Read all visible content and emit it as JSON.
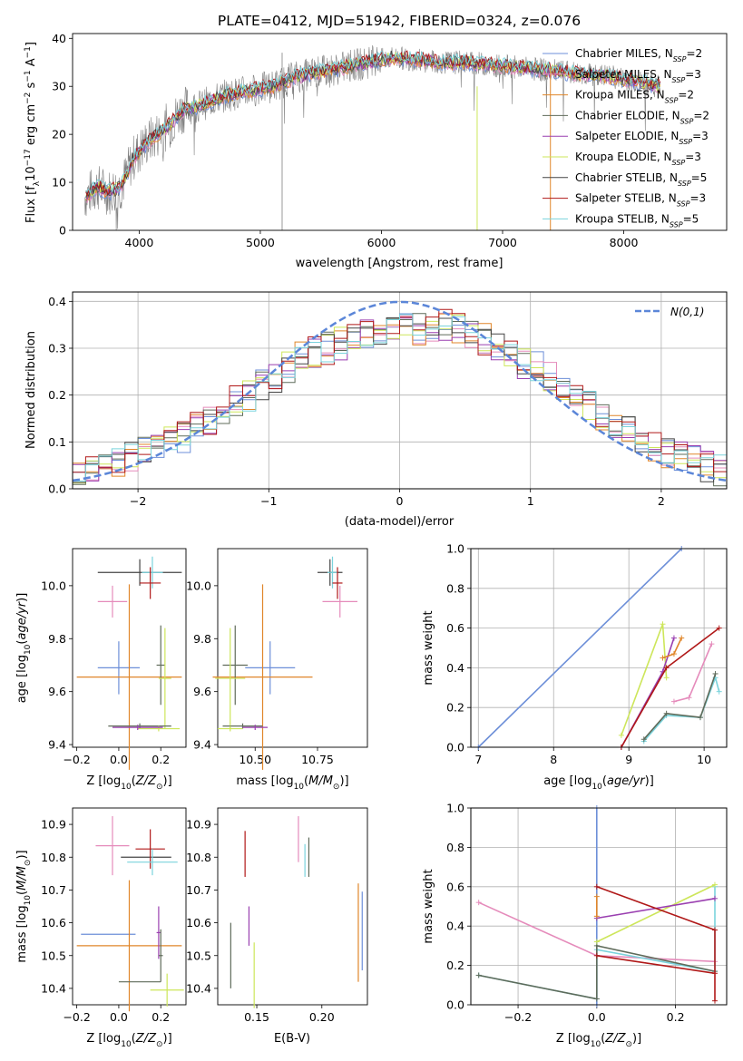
{
  "figure": {
    "title": "PLATE=0412, MJD=51942, FIBERID=0324, z=0.076"
  },
  "colors": {
    "series": [
      "#6d8fd8",
      "#e58bbb",
      "#e0862a",
      "#5f6b5a",
      "#9a3fb0",
      "#cde65a",
      "#444444",
      "#b01818",
      "#7ad3dc"
    ],
    "data": "#808080",
    "normal": "#5b86d8"
  },
  "chart_data": [
    {
      "type": "line",
      "title": "PLATE=0412, MJD=51942, FIBERID=0324, z=0.076",
      "xlabel": "wavelength [Angstrom, rest frame]",
      "ylabel": "Flux [f_λ 10^-17 erg cm^-2 s^-1 A^-1]",
      "xlim": [
        3450,
        8850
      ],
      "ylim": [
        0,
        41
      ],
      "xticks": [
        "4000",
        "5000",
        "6000",
        "7000",
        "8000"
      ],
      "yticks": [
        "0",
        "10",
        "20",
        "30",
        "40"
      ],
      "legend_position": "right",
      "series": [
        {
          "name": "Chabrier MILES, N_SSP=2",
          "color": "#6d8fd8"
        },
        {
          "name": "Salpeter MILES, N_SSP=3",
          "color": "#e58bbb"
        },
        {
          "name": "Kroupa MILES, N_SSP=2",
          "color": "#e0862a"
        },
        {
          "name": "Chabrier ELODIE, N_SSP=2",
          "color": "#5f6b5a"
        },
        {
          "name": "Salpeter ELODIE, N_SSP=3",
          "color": "#9a3fb0"
        },
        {
          "name": "Kroupa ELODIE, N_SSP=3",
          "color": "#cde65a"
        },
        {
          "name": "Chabrier STELIB, N_SSP=5",
          "color": "#444444"
        },
        {
          "name": "Salpeter STELIB, N_SSP=3",
          "color": "#b01818"
        },
        {
          "name": "Kroupa STELIB, N_SSP=5",
          "color": "#7ad3dc"
        }
      ],
      "continuum": {
        "x": [
          3550,
          3650,
          3750,
          3850,
          3950,
          4050,
          4150,
          4250,
          4350,
          4500,
          4700,
          4900,
          5100,
          5300,
          5500,
          5700,
          5900,
          6100,
          6300,
          6500,
          6700,
          6900,
          7100,
          7300,
          7500,
          7700,
          7900,
          8100,
          8300
        ],
        "y": [
          7,
          9,
          8,
          9,
          15,
          18,
          20,
          22,
          25,
          26,
          28,
          29,
          30,
          32,
          33,
          34,
          35,
          36,
          35.5,
          35,
          35,
          34.5,
          34,
          33.5,
          33,
          32.5,
          32,
          31,
          30
        ]
      }
    },
    {
      "type": "bar",
      "xlabel": "(data-model)/error",
      "ylabel": "Normed distribution",
      "xlim": [
        -2.5,
        2.5
      ],
      "ylim": [
        0,
        0.42
      ],
      "xticks": [
        "−2",
        "−1",
        "0",
        "1",
        "2"
      ],
      "yticks": [
        "0.0",
        "0.1",
        "0.2",
        "0.3",
        "0.4"
      ],
      "legend": "N(0,1)",
      "legend_position": "top-right",
      "bin_width": 0.1,
      "bin_start": -2.5,
      "histogram": [
        0.04,
        0.05,
        0.05,
        0.06,
        0.07,
        0.08,
        0.08,
        0.1,
        0.11,
        0.13,
        0.15,
        0.17,
        0.19,
        0.2,
        0.22,
        0.24,
        0.26,
        0.28,
        0.29,
        0.3,
        0.31,
        0.32,
        0.33,
        0.33,
        0.34,
        0.35,
        0.34,
        0.35,
        0.35,
        0.34,
        0.33,
        0.32,
        0.31,
        0.29,
        0.27,
        0.26,
        0.24,
        0.22,
        0.2,
        0.18,
        0.16,
        0.14,
        0.12,
        0.11,
        0.09,
        0.08,
        0.07,
        0.06,
        0.05,
        0.04
      ]
    },
    {
      "type": "scatter",
      "xlabel": "Z [log10(Z/Z⊙)]",
      "ylabel": "age [log10(age/yr)]",
      "xlim": [
        -0.22,
        0.32
      ],
      "ylim": [
        9.39,
        10.14
      ],
      "xticks": [
        "−0.2",
        "0.0",
        "0.2"
      ],
      "yticks": [
        "9.4",
        "9.6",
        "9.8",
        "10.0"
      ],
      "points": [
        {
          "x": 0.1,
          "xerr": 0.2,
          "y": 10.05,
          "yerr": 0.05,
          "series": 6
        },
        {
          "x": 0.16,
          "xerr": 0.05,
          "y": 10.05,
          "yerr": 0.06,
          "series": 8
        },
        {
          "x": 0.15,
          "xerr": 0.05,
          "y": 10.01,
          "yerr": 0.06,
          "series": 7
        },
        {
          "x": -0.03,
          "xerr": 0.07,
          "y": 9.94,
          "yerr": 0.06,
          "series": 1
        },
        {
          "x": 0.0,
          "xerr": 0.1,
          "y": 9.69,
          "yerr": 0.1,
          "series": 0
        },
        {
          "x": 0.05,
          "xerr": 0.25,
          "y": 9.655,
          "yerr": 0.35,
          "series": 2
        },
        {
          "x": 0.2,
          "xerr": 0.02,
          "y": 9.7,
          "yerr": 0.15,
          "series": 3
        },
        {
          "x": 0.22,
          "xerr": 0.03,
          "y": 9.65,
          "yerr": 0.19,
          "series": 5
        },
        {
          "x": 0.1,
          "xerr": 0.15,
          "y": 9.47,
          "yerr": 0.01,
          "series": 3
        },
        {
          "x": 0.19,
          "xerr": 0.1,
          "y": 9.46,
          "yerr": 0.01,
          "series": 5
        },
        {
          "x": 0.09,
          "xerr": 0.12,
          "y": 9.465,
          "yerr": 0.01,
          "series": 4
        }
      ]
    },
    {
      "type": "scatter",
      "xlabel": "mass [log10(M/M⊙)]",
      "ylabel": "",
      "xlim": [
        10.35,
        10.95
      ],
      "ylim": [
        9.39,
        10.14
      ],
      "xticks": [
        "10.50",
        "10.75"
      ],
      "yticks": [
        "9.4",
        "9.6",
        "9.8",
        "10.0"
      ],
      "points": [
        {
          "x": 10.8,
          "xerr": 0.05,
          "y": 10.05,
          "yerr": 0.05,
          "series": 6
        },
        {
          "x": 10.81,
          "xerr": 0.02,
          "y": 10.05,
          "yerr": 0.06,
          "series": 8
        },
        {
          "x": 10.83,
          "xerr": 0.02,
          "y": 10.01,
          "yerr": 0.06,
          "series": 7
        },
        {
          "x": 10.84,
          "xerr": 0.07,
          "y": 9.94,
          "yerr": 0.06,
          "series": 1
        },
        {
          "x": 10.56,
          "xerr": 0.1,
          "y": 9.69,
          "yerr": 0.1,
          "series": 0
        },
        {
          "x": 10.53,
          "xerr": 0.2,
          "y": 9.655,
          "yerr": 0.35,
          "series": 2
        },
        {
          "x": 10.42,
          "xerr": 0.05,
          "y": 9.7,
          "yerr": 0.15,
          "series": 3
        },
        {
          "x": 10.4,
          "xerr": 0.06,
          "y": 9.65,
          "yerr": 0.19,
          "series": 5
        },
        {
          "x": 10.45,
          "xerr": 0.08,
          "y": 9.47,
          "yerr": 0.01,
          "series": 3
        },
        {
          "x": 10.4,
          "xerr": 0.05,
          "y": 9.46,
          "yerr": 0.01,
          "series": 5
        },
        {
          "x": 10.5,
          "xerr": 0.05,
          "y": 9.465,
          "yerr": 0.01,
          "series": 4
        }
      ]
    },
    {
      "type": "line",
      "xlabel": "age [log10(age/yr)]",
      "ylabel": "mass weight",
      "xlim": [
        6.9,
        10.3
      ],
      "ylim": [
        0,
        1
      ],
      "xticks": [
        "7",
        "8",
        "9",
        "10"
      ],
      "yticks": [
        "0.0",
        "0.2",
        "0.4",
        "0.6",
        "0.8",
        "1.0"
      ],
      "series": [
        {
          "color": 0,
          "x": [
            7.0,
            9.7
          ],
          "y": [
            0.0,
            1.0
          ]
        },
        {
          "color": 5,
          "x": [
            8.9,
            9.45,
            9.5
          ],
          "y": [
            0.06,
            0.62,
            0.35
          ]
        },
        {
          "color": 4,
          "x": [
            8.9,
            9.45,
            9.6
          ],
          "y": [
            0.0,
            0.38,
            0.55
          ]
        },
        {
          "color": 2,
          "x": [
            9.45,
            9.6,
            9.7
          ],
          "y": [
            0.45,
            0.47,
            0.55
          ]
        },
        {
          "color": 7,
          "x": [
            8.9,
            9.5,
            10.2
          ],
          "y": [
            0.0,
            0.4,
            0.6
          ]
        },
        {
          "color": 1,
          "x": [
            9.6,
            9.8,
            10.1
          ],
          "y": [
            0.23,
            0.25,
            0.52
          ]
        },
        {
          "color": 8,
          "x": [
            9.2,
            9.5,
            9.95,
            10.15,
            10.2
          ],
          "y": [
            0.03,
            0.16,
            0.15,
            0.35,
            0.28
          ]
        },
        {
          "color": 3,
          "x": [
            9.2,
            9.5,
            9.95,
            10.15
          ],
          "y": [
            0.04,
            0.17,
            0.15,
            0.37
          ]
        }
      ]
    },
    {
      "type": "scatter",
      "xlabel": "Z [log10(Z/Z⊙)]",
      "ylabel": "mass [log10(M/M⊙)]",
      "xlim": [
        -0.22,
        0.32
      ],
      "ylim": [
        10.35,
        10.95
      ],
      "xticks": [
        "−0.2",
        "0.0",
        "0.2"
      ],
      "yticks": [
        "10.4",
        "10.5",
        "10.6",
        "10.7",
        "10.8",
        "10.9"
      ],
      "points": [
        {
          "x": -0.03,
          "xerr": 0.08,
          "y": 10.835,
          "yerr": 0.09,
          "series": 1
        },
        {
          "x": 0.13,
          "xerr": 0.12,
          "y": 10.8,
          "yerr": 0.0,
          "series": 6
        },
        {
          "x": 0.15,
          "xerr": 0.07,
          "y": 10.825,
          "yerr": 0.06,
          "series": 7
        },
        {
          "x": 0.16,
          "xerr": 0.12,
          "y": 10.785,
          "yerr": 0.04,
          "series": 8
        },
        {
          "x": -0.05,
          "xerr": 0.13,
          "y": 10.565,
          "yerr": 0.0,
          "series": 0
        },
        {
          "x": 0.05,
          "xerr": 0.25,
          "y": 10.53,
          "yerr": 0.2,
          "series": 2
        },
        {
          "x": 0.19,
          "xerr": 0.01,
          "y": 10.57,
          "yerr": 0.08,
          "series": 4
        },
        {
          "x": 0.1,
          "xerr": 0.1,
          "y": 10.42,
          "yerr": 0.0,
          "series": 3
        },
        {
          "x": 0.2,
          "xerr": 0.01,
          "y": 10.5,
          "yerr": 0.08,
          "series": 3
        },
        {
          "x": 0.23,
          "xerr": 0.08,
          "y": 10.395,
          "yerr": 0.05,
          "series": 5
        }
      ]
    },
    {
      "type": "scatter",
      "xlabel": "E(B-V)",
      "ylabel": "",
      "xlim": [
        0.12,
        0.235
      ],
      "ylim": [
        10.35,
        10.95
      ],
      "xticks": [
        "0.15",
        "0.20"
      ],
      "yticks": [
        "10.4",
        "10.5",
        "10.6",
        "10.7",
        "10.8",
        "10.9"
      ],
      "points": [
        {
          "x": 0.141,
          "y": 10.81,
          "yerr": 0.07,
          "series": 7
        },
        {
          "x": 0.182,
          "y": 10.855,
          "yerr": 0.07,
          "series": 1
        },
        {
          "x": 0.19,
          "y": 10.8,
          "yerr": 0.06,
          "series": 3
        },
        {
          "x": 0.187,
          "y": 10.79,
          "yerr": 0.05,
          "series": 8
        },
        {
          "x": 0.13,
          "y": 10.5,
          "yerr": 0.1,
          "series": 3
        },
        {
          "x": 0.144,
          "y": 10.59,
          "yerr": 0.06,
          "series": 4
        },
        {
          "x": 0.148,
          "y": 10.44,
          "yerr": 0.1,
          "series": 5
        },
        {
          "x": 0.228,
          "y": 10.57,
          "yerr": 0.15,
          "series": 2
        },
        {
          "x": 0.231,
          "y": 10.575,
          "yerr": 0.12,
          "series": 0
        }
      ]
    },
    {
      "type": "line",
      "xlabel": "Z [log10(Z/Z⊙)]",
      "ylabel": "mass weight",
      "xlim": [
        -0.32,
        0.33
      ],
      "ylim": [
        0,
        1
      ],
      "xticks": [
        "−0.2",
        "0.0",
        "0.2"
      ],
      "yticks": [
        "0.0",
        "0.2",
        "0.4",
        "0.6",
        "0.8",
        "1.0"
      ],
      "series": [
        {
          "color": 0,
          "x": [
            0.0,
            0.0
          ],
          "y": [
            0.0,
            1.0
          ]
        },
        {
          "color": 1,
          "x": [
            -0.3,
            0.0,
            0.3
          ],
          "y": [
            0.52,
            0.25,
            0.22
          ]
        },
        {
          "color": 8,
          "x": [
            -0.3,
            0.0,
            0.0,
            0.3,
            0.3
          ],
          "y": [
            0.15,
            0.03,
            0.28,
            0.17,
            0.6
          ]
        },
        {
          "color": 3,
          "x": [
            -0.3,
            0.0,
            0.0,
            0.3
          ],
          "y": [
            0.15,
            0.03,
            0.3,
            0.17
          ]
        },
        {
          "color": 5,
          "x": [
            0.0,
            0.3
          ],
          "y": [
            0.32,
            0.61
          ]
        },
        {
          "color": 4,
          "x": [
            0.0,
            0.3
          ],
          "y": [
            0.44,
            0.54
          ]
        },
        {
          "color": 7,
          "x": [
            0.0,
            0.3
          ],
          "y": [
            0.6,
            0.38
          ]
        },
        {
          "color": 7,
          "x": [
            0.0,
            0.3
          ],
          "y": [
            0.25,
            0.16
          ]
        },
        {
          "color": 2,
          "x": [
            0.0,
            0.0
          ],
          "y": [
            0.45,
            0.55
          ]
        },
        {
          "color": 7,
          "x": [
            0.3,
            0.3
          ],
          "y": [
            0.02,
            0.38
          ]
        }
      ]
    }
  ]
}
